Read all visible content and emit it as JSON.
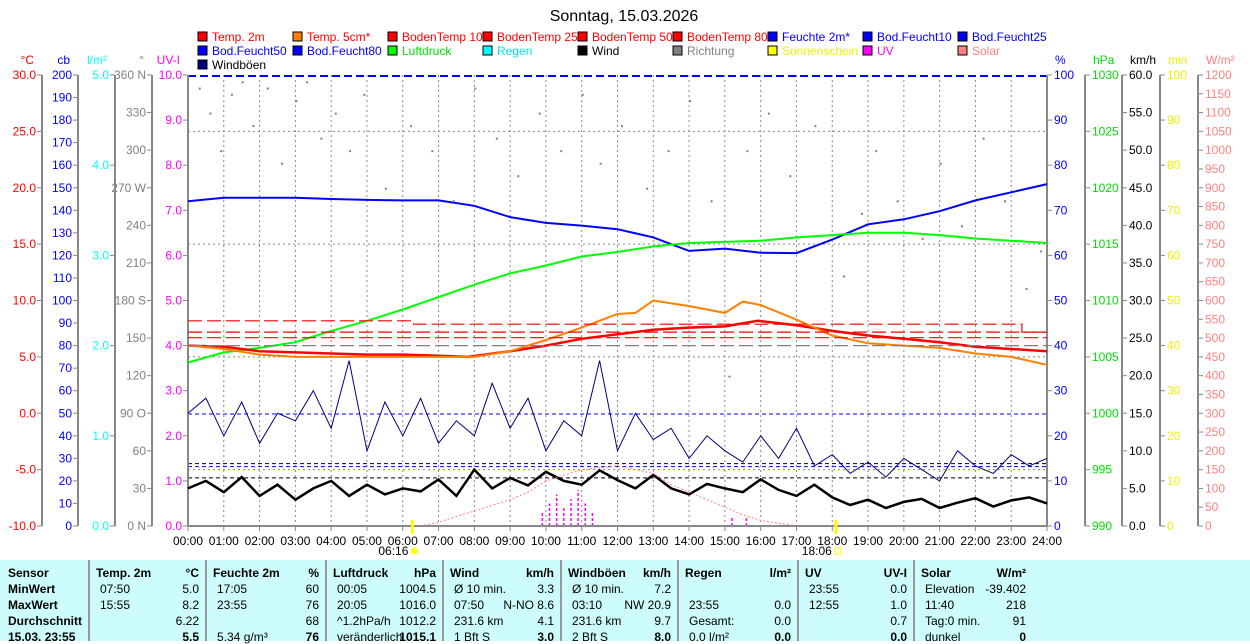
{
  "title": "Sonntag, 15.03.2026",
  "legend": [
    {
      "label": "Temp. 2m",
      "color": "#ff0000",
      "text": "#ff0000"
    },
    {
      "label": "Temp. 5cm*",
      "color": "#ff8000",
      "text": "#ff0000"
    },
    {
      "label": "BodenTemp 10",
      "color": "#ff0000",
      "text": "#ff0000"
    },
    {
      "label": "BodenTemp 25",
      "color": "#ff0000",
      "text": "#ff0000"
    },
    {
      "label": "BodenTemp 50",
      "color": "#ff0000",
      "text": "#ff0000"
    },
    {
      "label": "BodenTemp 80",
      "color": "#ff0000",
      "text": "#ff0000"
    },
    {
      "label": "Feuchte 2m*",
      "color": "#0000ff",
      "text": "#0000ff"
    },
    {
      "label": "Bod.Feucht10",
      "color": "#0000ff",
      "text": "#0000ff"
    },
    {
      "label": "Bod.Feucht25",
      "color": "#0000ff",
      "text": "#0000ff"
    },
    {
      "label": "Bod.Feucht50",
      "color": "#0000ff",
      "text": "#0000ff"
    },
    {
      "label": "Bod.Feucht80",
      "color": "#0000ff",
      "text": "#0000ff"
    },
    {
      "label": "Luftdruck",
      "color": "#00ff00",
      "text": "#00dd00"
    },
    {
      "label": "Regen",
      "color": "#00ffff",
      "text": "#00e0f0"
    },
    {
      "label": "Wind",
      "color": "#000000",
      "text": "#000000"
    },
    {
      "label": "Richtung",
      "color": "#808080",
      "text": "#808080"
    },
    {
      "label": "Sonnenschein",
      "color": "#ffff00",
      "text": "#f0f000"
    },
    {
      "label": "UV",
      "color": "#ff00ff",
      "text": "#ff00ff"
    },
    {
      "label": "Solar",
      "color": "#ff8080",
      "text": "#ff8080"
    },
    {
      "label": "Windböen",
      "color": "#000080",
      "text": "#000000"
    }
  ],
  "axes_left": [
    {
      "unit": "°C",
      "min": -10,
      "max": 30,
      "step": 5,
      "dec": 1,
      "color": "#ff0000"
    },
    {
      "unit": "cb",
      "min": 0,
      "max": 200,
      "step": 10,
      "dec": 0,
      "color": "#0000ff"
    },
    {
      "unit": "l/m²",
      "min": 0,
      "max": 5,
      "step": 1,
      "dec": 1,
      "color": "#00ffff"
    },
    {
      "unit": "°",
      "min": 0,
      "max": 360,
      "step": 30,
      "dec": 0,
      "color": "#808080",
      "compass": {
        "0": "N",
        "90": "O",
        "180": "S",
        "270": "W",
        "360": "N"
      }
    },
    {
      "unit": "UV-I",
      "min": 0,
      "max": 10,
      "step": 1,
      "dec": 1,
      "color": "#ff00ff"
    }
  ],
  "axes_right": [
    {
      "unit": "%",
      "min": 0,
      "max": 100,
      "step": 10,
      "dec": 0,
      "color": "#0000ff"
    },
    {
      "unit": "hPa",
      "min": 990,
      "max": 1030,
      "step": 5,
      "dec": 0,
      "color": "#00dd00"
    },
    {
      "unit": "km/h",
      "min": 0,
      "max": 60,
      "step": 5,
      "dec": 1,
      "color": "#000000"
    },
    {
      "unit": "min",
      "min": 0,
      "max": 100,
      "step": 10,
      "dec": 0,
      "color": "#f0f000"
    },
    {
      "unit": "W/m²",
      "min": 0,
      "max": 1200,
      "step": 50,
      "dec": 0,
      "color": "#ff8080"
    }
  ],
  "time_labels": [
    "00:00",
    "01:00",
    "02:00",
    "03:00",
    "04:00",
    "05:00",
    "06:00",
    "07:00",
    "08:00",
    "09:00",
    "10:00",
    "11:00",
    "12:00",
    "13:00",
    "14:00",
    "15:00",
    "16:00",
    "17:00",
    "18:00",
    "19:00",
    "20:00",
    "21:00",
    "22:00",
    "23:00",
    "24:00"
  ],
  "sunrise": {
    "label": "06:16",
    "hour": 6.27
  },
  "sunset": {
    "label": "18:06",
    "hour": 18.1
  },
  "chart_data": {
    "type": "line",
    "title": "Sonntag, 15.03.2026",
    "x_unit": "hour",
    "xlim": [
      0,
      24
    ],
    "series": [
      {
        "name": "Feuchte 2m*",
        "axis": "%",
        "color": "#0000ff",
        "hours": [
          0,
          1,
          2,
          3,
          4,
          5,
          6,
          7,
          8,
          9,
          10,
          11,
          12,
          13,
          14,
          15,
          16,
          17,
          18,
          19,
          20,
          21,
          22,
          23,
          24
        ],
        "values": [
          72,
          72.8,
          72.8,
          72.8,
          72.5,
          72.3,
          72.2,
          72.2,
          71,
          68.5,
          67.2,
          66.6,
          65.8,
          64,
          61,
          61.5,
          60.6,
          60.5,
          63.5,
          66.9,
          68,
          69.8,
          72.2,
          74,
          75.8
        ]
      },
      {
        "name": "Luftdruck",
        "axis": "hPa",
        "color": "#00ff00",
        "hours": [
          0,
          1,
          2,
          3,
          4,
          5,
          6,
          7,
          8,
          9,
          10,
          11,
          12,
          13,
          14,
          15,
          16,
          17,
          18,
          19,
          20,
          21,
          22,
          23,
          24
        ],
        "values": [
          1004.5,
          1005.4,
          1005.8,
          1006.3,
          1007.3,
          1008.2,
          1009.2,
          1010.3,
          1011.4,
          1012.4,
          1013.1,
          1013.9,
          1014.3,
          1014.8,
          1015.1,
          1015.2,
          1015.3,
          1015.6,
          1015.8,
          1016.0,
          1016.0,
          1015.8,
          1015.5,
          1015.3,
          1015.1
        ]
      },
      {
        "name": "Temp. 2m",
        "axis": "°C",
        "color": "#ff0000",
        "hours": [
          0,
          1,
          2,
          3,
          4,
          5,
          6,
          7,
          7.83,
          9,
          10,
          11,
          12,
          13,
          14,
          15,
          15.92,
          17,
          18,
          19,
          20,
          21,
          22,
          23,
          24
        ],
        "values": [
          6.0,
          5.9,
          5.5,
          5.4,
          5.3,
          5.2,
          5.2,
          5.1,
          5.0,
          5.5,
          6.0,
          6.6,
          7.0,
          7.4,
          7.6,
          7.7,
          8.2,
          7.8,
          7.3,
          6.9,
          6.6,
          6.3,
          5.9,
          5.7,
          5.5
        ]
      },
      {
        "name": "Temp. 5cm*",
        "axis": "°C",
        "color": "#ff8000",
        "hours": [
          0,
          1,
          2,
          3,
          4,
          5,
          6,
          7,
          8,
          9,
          10,
          11,
          12,
          12.5,
          13,
          14,
          15,
          15.5,
          16,
          17,
          18,
          19,
          20,
          21,
          22,
          23,
          24
        ],
        "values": [
          6.0,
          5.7,
          5.2,
          5.0,
          5.0,
          5.0,
          5.0,
          5.0,
          5.0,
          5.5,
          6.5,
          7.6,
          8.8,
          8.9,
          10.0,
          9.5,
          8.9,
          9.9,
          9.6,
          8.3,
          6.9,
          6.2,
          6.0,
          5.8,
          5.3,
          5.0,
          4.3
        ]
      },
      {
        "name": "BodenTemp 10",
        "axis": "°C",
        "color": "#ff0000",
        "dashed": true,
        "hours": [
          0,
          6.3,
          6.3,
          23.3,
          23.3,
          24
        ],
        "values": [
          8.2,
          8.2,
          7.9,
          7.9,
          7.2,
          7.2
        ]
      },
      {
        "name": "BodenTemp 25",
        "axis": "°C",
        "color": "#ff0000",
        "dashed": true,
        "hours": [
          0,
          24
        ],
        "values": [
          7.2,
          7.2
        ]
      },
      {
        "name": "BodenTemp 50",
        "axis": "°C",
        "color": "#ff0000",
        "dashed": true,
        "hours": [
          0,
          24
        ],
        "values": [
          6.7,
          6.7
        ]
      },
      {
        "name": "BodenTemp 80",
        "axis": "°C",
        "color": "#808080",
        "dashed": true,
        "hours": [
          0,
          24
        ],
        "values": [
          6.0,
          6.0
        ]
      },
      {
        "name": "Wind",
        "axis": "km/h",
        "color": "#000000",
        "step_h": 0.5,
        "values": [
          5,
          6,
          4.5,
          6.5,
          4,
          5.5,
          3.5,
          5,
          6,
          4,
          5.5,
          4.2,
          5,
          4.6,
          6.2,
          4,
          7.5,
          5,
          6.4,
          5.4,
          7.2,
          6,
          5.5,
          7.4,
          6.1,
          5,
          6.8,
          5,
          4.2,
          5.6,
          5,
          4.5,
          6.2,
          4.8,
          4,
          5.5,
          3.8,
          2.8,
          3.5,
          2.4,
          3.2,
          3.6,
          2.4,
          3.1,
          3.7,
          2.6,
          3.4,
          3.8,
          3.0
        ]
      },
      {
        "name": "Windböen",
        "axis": "km/h",
        "color": "#000080",
        "step_h": 0.5,
        "values": [
          15,
          17,
          12,
          16.5,
          11,
          15,
          14,
          18,
          13,
          22,
          10,
          16.5,
          12,
          17,
          11,
          14,
          12,
          19,
          13,
          17,
          10,
          14,
          12,
          22,
          10,
          15,
          11.5,
          13,
          9,
          12,
          10,
          8.5,
          12,
          9,
          13,
          8,
          9.5,
          7,
          8.5,
          6.5,
          9,
          7.5,
          6,
          10,
          8,
          7,
          9.5,
          8,
          9
        ]
      },
      {
        "name": "Richtung",
        "axis": "°",
        "color": "#808080",
        "type": "scatter",
        "points": [
          [
            0.3,
            350
          ],
          [
            0.6,
            330
          ],
          [
            0.9,
            300
          ],
          [
            1.2,
            345
          ],
          [
            1.5,
            355
          ],
          [
            1.8,
            320
          ],
          [
            2.2,
            350
          ],
          [
            2.6,
            290
          ],
          [
            3.0,
            340
          ],
          [
            3.3,
            355
          ],
          [
            3.7,
            310
          ],
          [
            4.1,
            330
          ],
          [
            4.5,
            300
          ],
          [
            4.9,
            345
          ],
          [
            5.5,
            270
          ],
          [
            6.2,
            320
          ],
          [
            6.8,
            300
          ],
          [
            7.4,
            260
          ],
          [
            8.0,
            350
          ],
          [
            8.6,
            310
          ],
          [
            9.2,
            280
          ],
          [
            9.8,
            330
          ],
          [
            10.4,
            300
          ],
          [
            11.0,
            345
          ],
          [
            11.5,
            290
          ],
          [
            12.1,
            320
          ],
          [
            12.8,
            270
          ],
          [
            13.4,
            300
          ],
          [
            14.0,
            340
          ],
          [
            14.6,
            260
          ],
          [
            15.1,
            120
          ],
          [
            15.6,
            300
          ],
          [
            16.2,
            330
          ],
          [
            16.8,
            280
          ],
          [
            17.5,
            320
          ],
          [
            18.3,
            200
          ],
          [
            18.8,
            250
          ],
          [
            19.2,
            300
          ],
          [
            19.8,
            260
          ],
          [
            20.5,
            230
          ],
          [
            21.0,
            290
          ],
          [
            21.6,
            240
          ],
          [
            22.2,
            310
          ],
          [
            22.8,
            260
          ],
          [
            23.4,
            190
          ],
          [
            23.8,
            220
          ]
        ]
      },
      {
        "name": "UV",
        "axis": "UV-I",
        "color": "#ff00ff",
        "type": "bars",
        "hours": [
          9.9,
          10.1,
          10.3,
          10.5,
          10.7,
          10.9,
          11.1,
          11.3,
          15.2,
          15.6
        ],
        "values": [
          0.3,
          0.5,
          0.7,
          0.4,
          0.6,
          0.8,
          0.5,
          0.3,
          0.2,
          0.2
        ]
      },
      {
        "name": "Solar",
        "axis": "W/m²",
        "color": "#ff8080",
        "dotted": true,
        "hours": [
          6.5,
          7,
          7.5,
          8,
          8.5,
          9,
          9.5,
          10,
          11,
          12,
          13,
          13.5,
          14,
          14.5,
          15,
          15.5,
          16,
          17
        ],
        "values": [
          0,
          10,
          25,
          40,
          55,
          70,
          90,
          120,
          150,
          160,
          140,
          110,
          90,
          70,
          50,
          30,
          15,
          0
        ]
      }
    ]
  },
  "table": {
    "sensor": [
      "Sensor",
      "MinWert",
      "MaxWert",
      "Durchschnitt",
      "15.03. 23:55"
    ],
    "columns": [
      {
        "header": "Temp. 2m",
        "unit": "°C",
        "rows": [
          [
            "07:50",
            "5.0"
          ],
          [
            "15:55",
            "8.2"
          ],
          [
            "",
            "6.22"
          ],
          [
            "",
            "5.5"
          ]
        ]
      },
      {
        "header": "Feuchte 2m",
        "unit": "%",
        "rows": [
          [
            "17:05",
            "60"
          ],
          [
            "23:55",
            "76"
          ],
          [
            "",
            "68"
          ],
          [
            "5.34 g/m³",
            "76"
          ]
        ]
      },
      {
        "header": "Luftdruck",
        "unit": "hPa",
        "rows": [
          [
            "00:05",
            "1004.5"
          ],
          [
            "20:05",
            "1016.0"
          ],
          [
            "^1.2hPa/h",
            "1012.2"
          ],
          [
            "veränderlich",
            "1015.1"
          ]
        ]
      },
      {
        "header": "Wind",
        "unit": "km/h",
        "rows": [
          [
            "Ø 10 min.",
            "3.3"
          ],
          [
            "07:50",
            "N-NO 8.6"
          ],
          [
            "231.6 km",
            "4.1"
          ],
          [
            "1 Bft S",
            "3.0"
          ]
        ]
      },
      {
        "header": "Windböen",
        "unit": "km/h",
        "rows": [
          [
            "Ø 10 min.",
            "7.2"
          ],
          [
            "03:10",
            "NW 20.9"
          ],
          [
            "231.6 km",
            "9.7"
          ],
          [
            "2 Bft S",
            "8.0"
          ]
        ]
      },
      {
        "header": "Regen",
        "unit": "l/m²",
        "rows": [
          [
            "",
            ""
          ],
          [
            "23:55",
            "0.0"
          ],
          [
            "Gesamt:",
            "0.0"
          ],
          [
            "0.0 l/m²",
            "0.0"
          ]
        ]
      },
      {
        "header": "UV",
        "unit": "UV-I",
        "rows": [
          [
            "23:55",
            "0.0"
          ],
          [
            "12:55",
            "1.0"
          ],
          [
            "",
            "0.7"
          ],
          [
            "",
            "0.0"
          ]
        ]
      },
      {
        "header": "Solar",
        "unit": "W/m²",
        "rows": [
          [
            "Elevation",
            "-39.402"
          ],
          [
            "11:40",
            "218"
          ],
          [
            "Tag:0 min.",
            "91"
          ],
          [
            "dunkel",
            "0"
          ]
        ]
      }
    ]
  }
}
